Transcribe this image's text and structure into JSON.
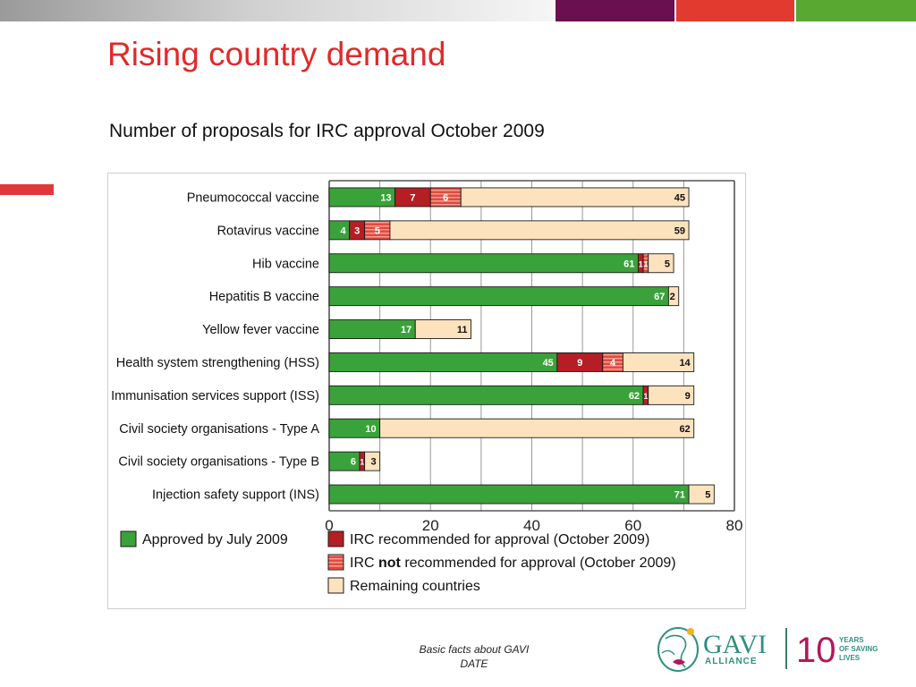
{
  "slide": {
    "title": "Rising country demand",
    "subtitle": "Number of proposals for IRC approval October 2009",
    "footer_line1": "Basic facts about GAVI",
    "footer_line2": "DATE"
  },
  "topbar": {
    "colors": [
      "#6a0f4f",
      "#e23a2e",
      "#58a832"
    ]
  },
  "logo": {
    "brand": "GAVI",
    "brand_sub": "ALLIANCE",
    "anniversary_number": "10",
    "anniversary_text": [
      "YEARS",
      "OF SAVING",
      "LIVES"
    ],
    "colors": {
      "gavi": "#2f8f80",
      "ten": "#b3175a",
      "tagline": "#2f8f80",
      "divider": "#3a7d6c"
    }
  },
  "chart_data": {
    "type": "bar",
    "orientation": "horizontal",
    "stacked": true,
    "categories": [
      "Pneumococcal vaccine",
      "Rotavirus vaccine",
      "Hib vaccine",
      "Hepatitis B vaccine",
      "Yellow fever vaccine",
      "Health system strengthening (HSS)",
      "Immunisation services support (ISS)",
      "Civil society organisations - Type A",
      "Civil society organisations - Type B",
      "Injection safety support (INS)"
    ],
    "series": [
      {
        "name": "Approved by July 2009",
        "color": "#3aa23a",
        "values": [
          13,
          4,
          61,
          67,
          17,
          45,
          62,
          10,
          6,
          71
        ]
      },
      {
        "name": "IRC recommended for approval (October 2009)",
        "color": "#b41e24",
        "values": [
          7,
          3,
          1,
          0,
          0,
          9,
          1,
          0,
          1,
          0
        ]
      },
      {
        "name": "IRC not recommended for approval (October 2009)",
        "color": "#e24a3e",
        "hatched": true,
        "values": [
          6,
          5,
          1,
          0,
          0,
          4,
          0,
          0,
          0,
          0
        ]
      },
      {
        "name": "Remaining countries",
        "color": "#fde3bd",
        "values": [
          45,
          59,
          5,
          2,
          11,
          14,
          9,
          62,
          3,
          5
        ]
      }
    ],
    "legend_parts": [
      {
        "plain": "Approved by July 2009"
      },
      {
        "plain": "IRC recommended for approval (October 2009)"
      },
      {
        "pre": "IRC ",
        "bold": "not",
        "post": " recommended for approval (October 2009)"
      },
      {
        "plain": "Remaining countries"
      }
    ],
    "xlim": [
      0,
      80
    ],
    "xticks": [
      0,
      20,
      40,
      60,
      80
    ],
    "grid": true,
    "legend_position": "bottom"
  }
}
